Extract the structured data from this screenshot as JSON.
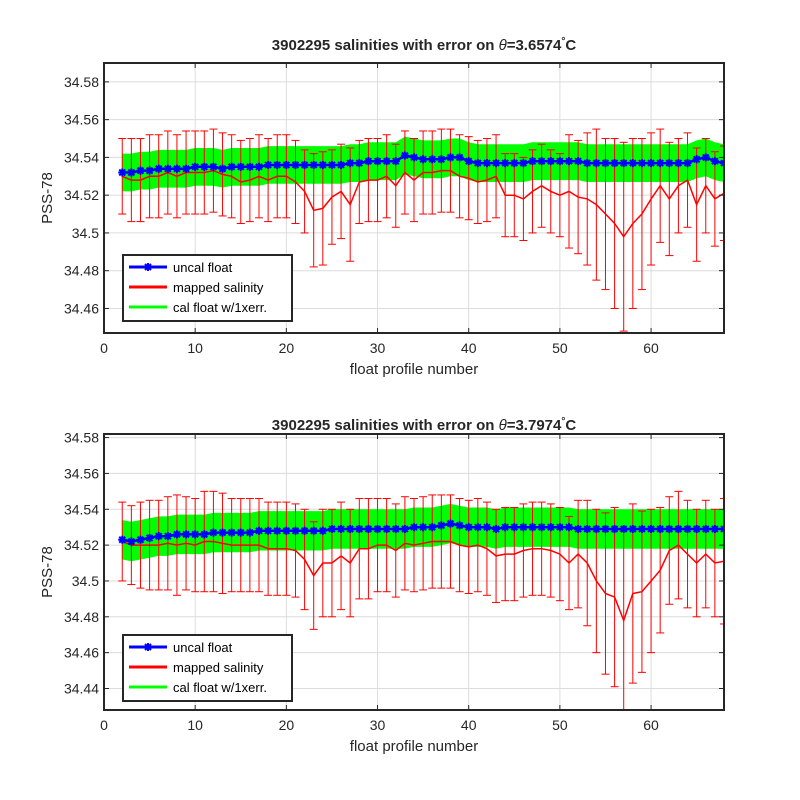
{
  "chart_data": [
    {
      "type": "line",
      "title_prefix": "3902295 salinities with error on ",
      "title_theta": "θ",
      "title_value": "=3.6574",
      "title_degree": "°",
      "title_unit": "C",
      "xlabel": "float profile number",
      "ylabel": "PSS-78",
      "xlim": [
        0,
        68
      ],
      "ylim": [
        34.447,
        34.59
      ],
      "xticks": [
        0,
        10,
        20,
        30,
        40,
        50,
        60
      ],
      "yticks": [
        34.46,
        34.48,
        34.5,
        34.52,
        34.54,
        34.56,
        34.58
      ],
      "ytick_labels": [
        "34.46",
        "34.48",
        "34.5",
        "34.52",
        "34.54",
        "34.56",
        "34.58"
      ],
      "grid": true,
      "legend_placement": "lower-left",
      "x": [
        2,
        3,
        4,
        5,
        6,
        7,
        8,
        9,
        10,
        11,
        12,
        13,
        14,
        15,
        16,
        17,
        18,
        19,
        20,
        21,
        22,
        23,
        24,
        25,
        26,
        27,
        28,
        29,
        30,
        31,
        32,
        33,
        34,
        35,
        36,
        37,
        38,
        39,
        40,
        41,
        42,
        43,
        44,
        45,
        46,
        47,
        48,
        49,
        50,
        51,
        52,
        53,
        54,
        55,
        56,
        57,
        58,
        59,
        60,
        61,
        62,
        63,
        64,
        65,
        66,
        67,
        68
      ],
      "series": [
        {
          "name": "uncal float",
          "color": "#0000ff",
          "values": [
            34.532,
            34.532,
            34.533,
            34.533,
            34.534,
            34.534,
            34.534,
            34.534,
            34.535,
            34.535,
            34.535,
            34.534,
            34.535,
            34.535,
            34.535,
            34.535,
            34.536,
            34.536,
            34.536,
            34.536,
            34.536,
            34.536,
            34.536,
            34.536,
            34.536,
            34.537,
            34.537,
            34.538,
            34.538,
            34.538,
            34.538,
            34.541,
            34.54,
            34.539,
            34.539,
            34.539,
            34.54,
            34.54,
            34.538,
            34.537,
            34.537,
            34.537,
            34.537,
            34.537,
            34.537,
            34.538,
            34.538,
            34.538,
            34.538,
            34.538,
            34.538,
            34.537,
            34.537,
            34.537,
            34.537,
            34.537,
            34.537,
            34.537,
            34.537,
            34.537,
            34.537,
            34.537,
            34.537,
            34.539,
            34.54,
            34.538,
            34.537
          ]
        },
        {
          "name": "mapped salinity",
          "color": "#ff0000",
          "values": [
            34.53,
            34.528,
            34.528,
            34.53,
            34.53,
            34.532,
            34.53,
            34.532,
            34.532,
            34.532,
            34.533,
            34.531,
            34.53,
            34.527,
            34.528,
            34.53,
            34.528,
            34.53,
            34.53,
            34.527,
            34.522,
            34.512,
            34.513,
            34.519,
            34.522,
            34.515,
            34.527,
            34.528,
            34.528,
            34.53,
            34.525,
            34.532,
            34.528,
            34.532,
            34.532,
            34.533,
            34.533,
            34.53,
            34.529,
            34.527,
            34.528,
            34.53,
            34.52,
            34.52,
            34.518,
            34.522,
            34.525,
            34.522,
            34.52,
            34.522,
            34.519,
            34.518,
            34.515,
            34.51,
            34.505,
            34.498,
            34.505,
            34.51,
            34.518,
            34.525,
            34.518,
            34.525,
            34.528,
            34.515,
            34.525,
            34.518,
            34.521
          ],
          "error": [
            0.02,
            0.022,
            0.022,
            0.022,
            0.022,
            0.022,
            0.022,
            0.022,
            0.022,
            0.022,
            0.022,
            0.022,
            0.022,
            0.022,
            0.022,
            0.022,
            0.022,
            0.022,
            0.022,
            0.022,
            0.022,
            0.03,
            0.03,
            0.025,
            0.025,
            0.03,
            0.022,
            0.022,
            0.022,
            0.022,
            0.022,
            0.022,
            0.022,
            0.022,
            0.022,
            0.022,
            0.022,
            0.022,
            0.022,
            0.022,
            0.022,
            0.022,
            0.022,
            0.022,
            0.022,
            0.022,
            0.022,
            0.022,
            0.022,
            0.03,
            0.03,
            0.035,
            0.04,
            0.04,
            0.045,
            0.05,
            0.045,
            0.04,
            0.035,
            0.03,
            0.03,
            0.025,
            0.025,
            0.03,
            0.025,
            0.025,
            0.025
          ]
        },
        {
          "name": "cal float w/1xerr.",
          "color": "#00ff00",
          "band_halfwidth": 0.01
        }
      ]
    },
    {
      "type": "line",
      "title_prefix": "3902295 salinities with error on ",
      "title_theta": "θ",
      "title_value": "=3.7974",
      "title_degree": "°",
      "title_unit": "C",
      "xlabel": "float profile number",
      "ylabel": "PSS-78",
      "xlim": [
        0,
        68
      ],
      "ylim": [
        34.428,
        34.582
      ],
      "xticks": [
        0,
        10,
        20,
        30,
        40,
        50,
        60
      ],
      "yticks": [
        34.44,
        34.46,
        34.48,
        34.5,
        34.52,
        34.54,
        34.56,
        34.58
      ],
      "ytick_labels": [
        "34.44",
        "34.46",
        "34.48",
        "34.5",
        "34.52",
        "34.54",
        "34.56",
        "34.58"
      ],
      "grid": true,
      "legend_placement": "lower-left",
      "x": [
        2,
        3,
        4,
        5,
        6,
        7,
        8,
        9,
        10,
        11,
        12,
        13,
        14,
        15,
        16,
        17,
        18,
        19,
        20,
        21,
        22,
        23,
        24,
        25,
        26,
        27,
        28,
        29,
        30,
        31,
        32,
        33,
        34,
        35,
        36,
        37,
        38,
        39,
        40,
        41,
        42,
        43,
        44,
        45,
        46,
        47,
        48,
        49,
        50,
        51,
        52,
        53,
        54,
        55,
        56,
        57,
        58,
        59,
        60,
        61,
        62,
        63,
        64,
        65,
        66,
        67,
        68
      ],
      "series": [
        {
          "name": "uncal float",
          "color": "#0000ff",
          "values": [
            34.523,
            34.522,
            34.523,
            34.524,
            34.525,
            34.525,
            34.526,
            34.526,
            34.526,
            34.526,
            34.527,
            34.527,
            34.527,
            34.527,
            34.527,
            34.528,
            34.528,
            34.528,
            34.528,
            34.528,
            34.528,
            34.528,
            34.528,
            34.529,
            34.529,
            34.529,
            34.529,
            34.529,
            34.529,
            34.529,
            34.529,
            34.529,
            34.53,
            34.53,
            34.53,
            34.531,
            34.532,
            34.531,
            34.53,
            34.53,
            34.53,
            34.529,
            34.53,
            34.53,
            34.53,
            34.53,
            34.53,
            34.53,
            34.53,
            34.53,
            34.529,
            34.529,
            34.529,
            34.529,
            34.529,
            34.529,
            34.529,
            34.529,
            34.529,
            34.529,
            34.529,
            34.529,
            34.529,
            34.529,
            34.529,
            34.529,
            34.529
          ]
        },
        {
          "name": "mapped salinity",
          "color": "#ff0000",
          "values": [
            34.522,
            34.52,
            34.52,
            34.52,
            34.52,
            34.521,
            34.52,
            34.521,
            34.52,
            34.522,
            34.522,
            34.521,
            34.52,
            34.52,
            34.52,
            34.52,
            34.518,
            34.518,
            34.518,
            34.517,
            34.512,
            34.503,
            34.51,
            34.51,
            34.514,
            34.51,
            34.518,
            34.518,
            34.52,
            34.52,
            34.517,
            34.521,
            34.52,
            34.521,
            34.522,
            34.522,
            34.522,
            34.52,
            34.519,
            34.52,
            34.518,
            34.514,
            34.515,
            34.515,
            34.517,
            34.518,
            34.518,
            34.517,
            34.515,
            34.51,
            34.515,
            34.51,
            34.5,
            34.493,
            34.491,
            34.478,
            34.493,
            34.494,
            34.5,
            34.506,
            34.517,
            34.52,
            34.515,
            34.51,
            34.515,
            34.51,
            34.511
          ],
          "error": [
            0.022,
            0.022,
            0.024,
            0.025,
            0.025,
            0.026,
            0.028,
            0.026,
            0.026,
            0.028,
            0.028,
            0.028,
            0.026,
            0.026,
            0.026,
            0.026,
            0.026,
            0.026,
            0.026,
            0.026,
            0.028,
            0.03,
            0.03,
            0.03,
            0.03,
            0.03,
            0.028,
            0.028,
            0.026,
            0.026,
            0.026,
            0.026,
            0.026,
            0.026,
            0.026,
            0.026,
            0.026,
            0.026,
            0.026,
            0.026,
            0.026,
            0.026,
            0.026,
            0.026,
            0.026,
            0.026,
            0.026,
            0.026,
            0.026,
            0.026,
            0.03,
            0.035,
            0.04,
            0.045,
            0.05,
            0.05,
            0.05,
            0.045,
            0.04,
            0.035,
            0.03,
            0.03,
            0.03,
            0.03,
            0.03,
            0.03,
            0.035
          ]
        },
        {
          "name": "cal float w/1xerr.",
          "color": "#00ff00",
          "band_halfwidth": 0.011
        }
      ]
    }
  ]
}
